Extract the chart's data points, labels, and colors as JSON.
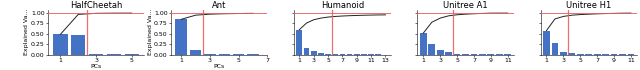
{
  "panels": [
    {
      "title": "HalfCheetah",
      "bar_values": [
        0.49,
        0.48,
        0.025,
        0.005,
        0.003
      ],
      "cumvar": [
        0.49,
        0.97,
        0.995,
        0.999,
        1.0
      ],
      "red_line_x": 2.5,
      "xticks": [
        1,
        3,
        5
      ],
      "xlabel": "PCs",
      "show_ylabel": true
    },
    {
      "title": "Ant",
      "bar_values": [
        0.85,
        0.1,
        0.025,
        0.01,
        0.005,
        0.005
      ],
      "cumvar": [
        0.85,
        0.95,
        0.975,
        0.985,
        0.99,
        0.995
      ],
      "red_line_x": 2.5,
      "xticks": [
        1,
        3,
        5,
        7
      ],
      "xlabel": "PCs",
      "show_ylabel": true
    },
    {
      "title": "Humanoid",
      "bar_values": [
        0.6,
        0.16,
        0.08,
        0.04,
        0.025,
        0.015,
        0.01,
        0.008,
        0.006,
        0.005,
        0.004,
        0.003,
        0.002
      ],
      "cumvar": [
        0.6,
        0.76,
        0.84,
        0.88,
        0.905,
        0.92,
        0.93,
        0.938,
        0.944,
        0.949,
        0.953,
        0.956,
        0.958
      ],
      "red_line_x": 5.5,
      "xticks": [
        1,
        3,
        5,
        7,
        9,
        11,
        13
      ],
      "xlabel": null,
      "show_ylabel": false
    },
    {
      "title": "Unitree A1",
      "bar_values": [
        0.52,
        0.26,
        0.1,
        0.055,
        0.025,
        0.015,
        0.01,
        0.008,
        0.006,
        0.005,
        0.004
      ],
      "cumvar": [
        0.52,
        0.78,
        0.88,
        0.935,
        0.96,
        0.975,
        0.985,
        0.993,
        0.999,
        1.0,
        1.0
      ],
      "red_line_x": 4.5,
      "xticks": [
        1,
        3,
        5,
        7,
        9,
        11
      ],
      "xlabel": null,
      "show_ylabel": false
    },
    {
      "title": "Unitree H1",
      "bar_values": [
        0.58,
        0.28,
        0.06,
        0.03,
        0.015,
        0.01,
        0.008,
        0.006,
        0.005,
        0.004,
        0.003
      ],
      "cumvar": [
        0.58,
        0.86,
        0.92,
        0.95,
        0.965,
        0.975,
        0.983,
        0.989,
        0.994,
        0.998,
        1.0
      ],
      "red_line_x": 3.5,
      "xticks": [
        1,
        3,
        5,
        7,
        9,
        11
      ],
      "xlabel": null,
      "show_ylabel": false
    }
  ],
  "bar_color": "#4472C4",
  "line_color": "#222222",
  "red_color": "#E86060",
  "red_line_alpha": 0.9,
  "title_fontsize": 6.0,
  "tick_fontsize": 4.5,
  "label_fontsize": 4.5,
  "ylim": [
    0.0,
    1.08
  ],
  "yticks": [
    0.0,
    0.25,
    0.5,
    0.75,
    1.0
  ],
  "yticklabels": [
    "0.00",
    "0.25",
    "0.50",
    "0.75",
    "1.00"
  ]
}
